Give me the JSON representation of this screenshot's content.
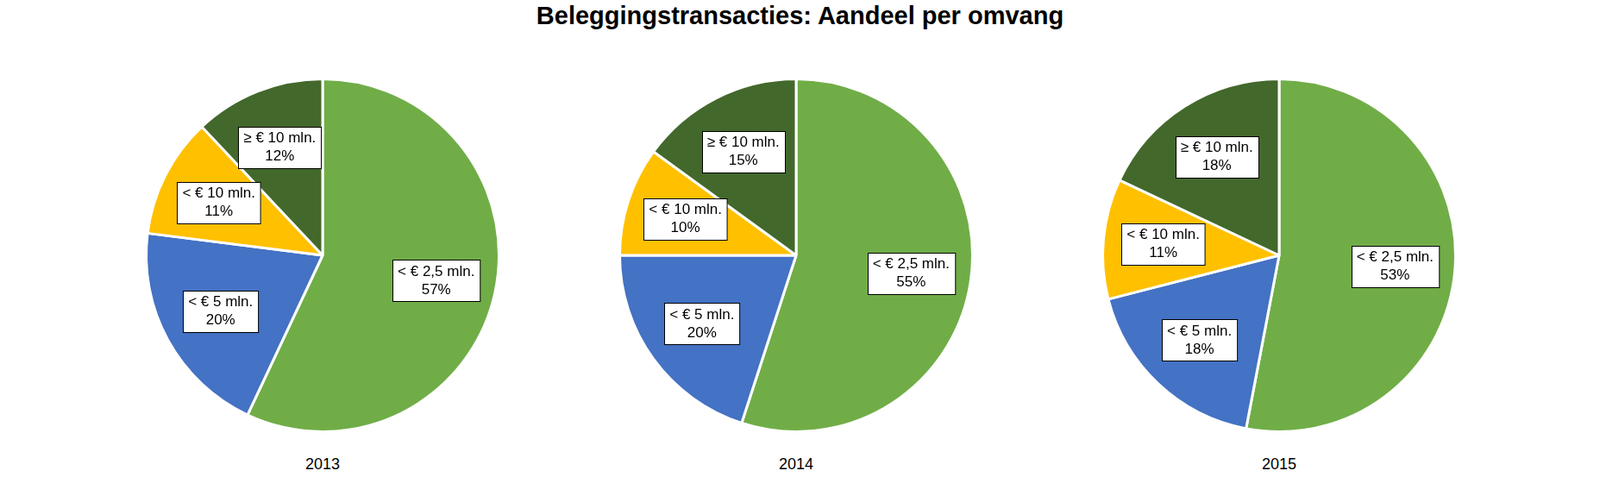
{
  "title": "Beleggingstransacties: Aandeel per omvang",
  "chart_data": [
    {
      "type": "pie",
      "title": "2013",
      "categories": [
        "< € 2,5 mln.",
        "< € 5 mln.",
        "< € 10 mln.",
        "≥ € 10 mln."
      ],
      "values": [
        57,
        20,
        11,
        12
      ],
      "value_labels": [
        "57%",
        "20%",
        "11%",
        "12%"
      ],
      "colors": [
        "#70ad47",
        "#4472c4",
        "#ffc000",
        "#43682b"
      ],
      "data_labels": true
    },
    {
      "type": "pie",
      "title": "2014",
      "categories": [
        "< € 2,5 mln.",
        "< € 5 mln.",
        "< € 10 mln.",
        "≥ € 10 mln."
      ],
      "values": [
        55,
        20,
        10,
        15
      ],
      "value_labels": [
        "55%",
        "20%",
        "10%",
        "15%"
      ],
      "colors": [
        "#70ad47",
        "#4472c4",
        "#ffc000",
        "#43682b"
      ],
      "data_labels": true
    },
    {
      "type": "pie",
      "title": "2015",
      "categories": [
        "< € 2,5 mln.",
        "< € 5 mln.",
        "< € 10 mln.",
        "≥ € 10 mln."
      ],
      "values": [
        53,
        18,
        11,
        18
      ],
      "value_labels": [
        "53%",
        "18%",
        "11%",
        "18%"
      ],
      "colors": [
        "#70ad47",
        "#4472c4",
        "#ffc000",
        "#43682b"
      ],
      "data_labels": true
    }
  ]
}
